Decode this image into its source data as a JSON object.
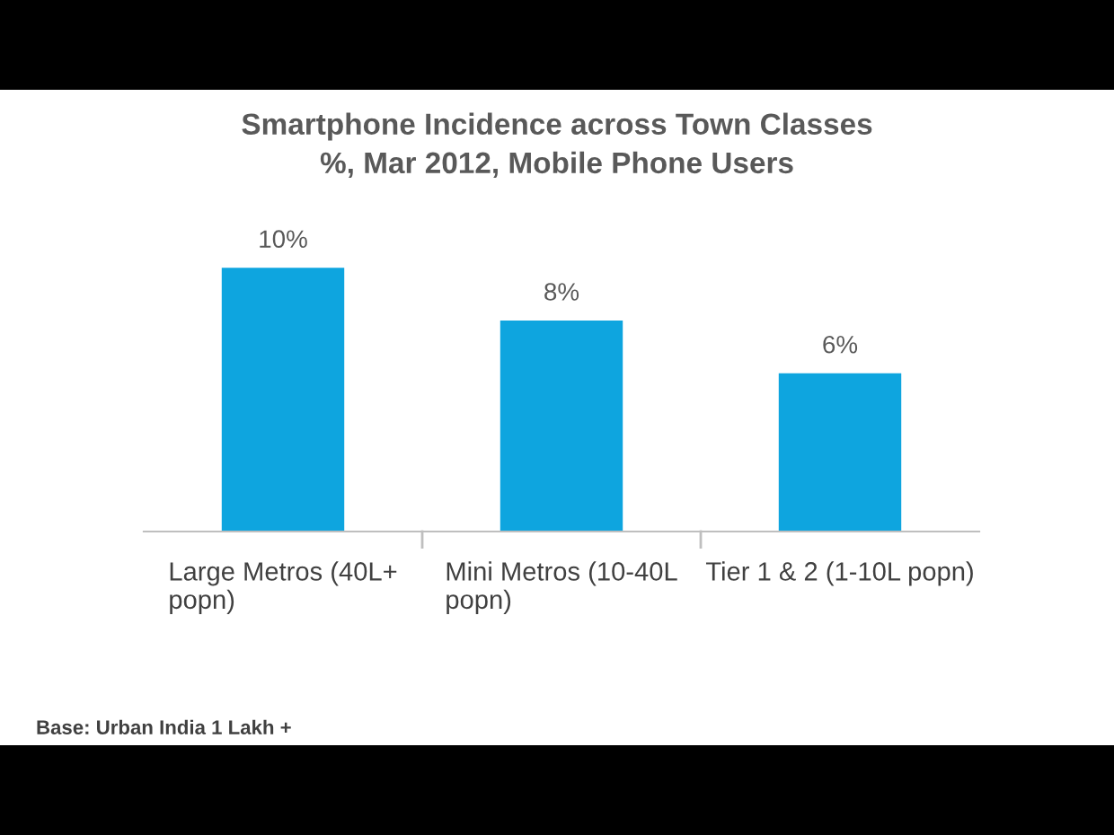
{
  "chart_data": {
    "type": "bar",
    "title": "Smartphone Incidence across Town Classes\n%, Mar 2012, Mobile Phone Users",
    "categories": [
      "Large Metros (40L+\npopn)",
      "Mini Metros (10-40L\npopn)",
      "Tier 1 & 2 (1-10L popn)"
    ],
    "values": [
      10,
      8,
      6
    ],
    "value_labels": [
      "10%",
      "8%",
      "6%"
    ],
    "color": "#0ea5df",
    "annotations": [
      "Base: Urban India 1 Lakh +"
    ]
  }
}
